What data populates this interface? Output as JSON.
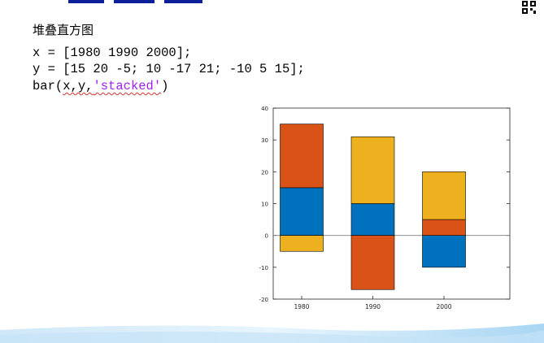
{
  "slide": {
    "heading": "堆叠直方图",
    "code_lines": [
      "x = [1980 1990 2000];",
      "y = [15 20 -5; 10 -17 21; -10 5 15];"
    ],
    "code_line3": {
      "prefix": "bar(",
      "args": "x,y,",
      "string": "'stacked'",
      "suffix": ")"
    }
  },
  "colors": {
    "series1": "#0072bd",
    "series2": "#d95319",
    "series3": "#edb120",
    "string": "#a020f0",
    "title_bar": "#0b1f9a"
  },
  "icons": [
    "qr-code-icon"
  ],
  "chart_data": {
    "type": "bar",
    "stacked": true,
    "categories": [
      "1980",
      "1990",
      "2000"
    ],
    "series": [
      {
        "values": [
          15,
          10,
          -10
        ]
      },
      {
        "values": [
          20,
          -17,
          5
        ]
      },
      {
        "values": [
          -5,
          21,
          15
        ]
      }
    ],
    "ylim": [
      -20,
      40
    ],
    "yticks": [
      "-20",
      "-10",
      "0",
      "10",
      "20",
      "30",
      "40"
    ],
    "title": "",
    "xlabel": "",
    "ylabel": "",
    "grid": false
  }
}
